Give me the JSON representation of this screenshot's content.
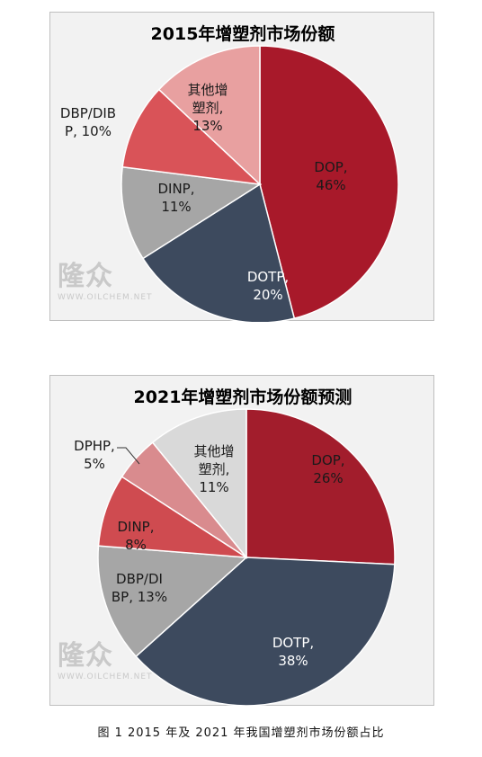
{
  "chart_data": [
    {
      "type": "pie",
      "title": "2015年增塑剂市场份额",
      "slices": [
        {
          "label": "DOP,\n46%",
          "name": "DOP",
          "value": 46,
          "color": "#a8192a",
          "text_color": "#1a1a1a"
        },
        {
          "label": "DOTP,\n20%",
          "name": "DOTP",
          "value": 20,
          "color": "#3d4a5e",
          "text_color": "#ffffff"
        },
        {
          "label": "DINP,\n11%",
          "name": "DINP",
          "value": 11,
          "color": "#a6a6a6",
          "text_color": "#1a1a1a"
        },
        {
          "label": "DBP/DIB\nP, 10%",
          "name": "DBP/DIBP",
          "value": 10,
          "color": "#d95358",
          "text_color": "#1a1a1a"
        },
        {
          "label": "其他增\n塑剂,\n13%",
          "name": "其他增塑剂",
          "value": 13,
          "color": "#e8a0a0",
          "text_color": "#1a1a1a"
        }
      ]
    },
    {
      "type": "pie",
      "title": "2021年增塑剂市场份额预测",
      "slices": [
        {
          "label": "DOP,\n26%",
          "name": "DOP",
          "value": 26,
          "color": "#a21d2c",
          "text_color": "#1a1a1a"
        },
        {
          "label": "DOTP,\n38%",
          "name": "DOTP",
          "value": 38,
          "color": "#3d4a5e",
          "text_color": "#ffffff"
        },
        {
          "label": "DBP/DI\nBP, 13%",
          "name": "DBP/DIBP",
          "value": 13,
          "color": "#a6a6a6",
          "text_color": "#1a1a1a"
        },
        {
          "label": "DINP,\n8%",
          "name": "DINP",
          "value": 8,
          "color": "#cf4b50",
          "text_color": "#1a1a1a"
        },
        {
          "label": "DPHP,\n5%",
          "name": "DPHP",
          "value": 5,
          "color": "#d98b8e",
          "text_color": "#1a1a1a"
        },
        {
          "label": "其他增\n塑剂,\n11%",
          "name": "其他增塑剂",
          "value": 11,
          "color": "#d9d9d9",
          "text_color": "#1a1a1a"
        }
      ]
    }
  ],
  "watermark": {
    "logo": "隆众",
    "url": "WWW.OILCHEM.NET"
  },
  "caption": "图 1  2015 年及 2021 年我国增塑剂市场份额占比"
}
